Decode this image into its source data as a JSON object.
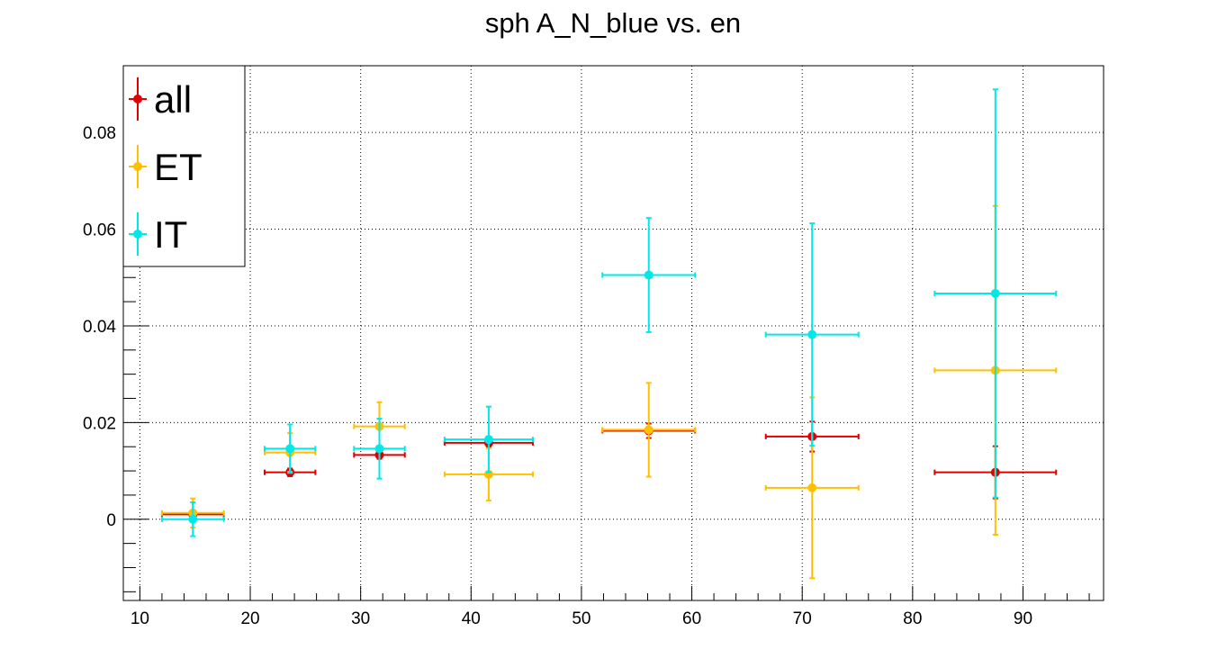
{
  "chart_data": {
    "type": "scatter",
    "title": "sph A_N_blue vs. en",
    "xlabel": "",
    "ylabel": "",
    "xlim": [
      8.5,
      97.3
    ],
    "ylim": [
      -0.0168,
      0.0938
    ],
    "x_ticks": [
      10,
      20,
      30,
      40,
      50,
      60,
      70,
      80,
      90
    ],
    "y_ticks": [
      0,
      0.02,
      0.04,
      0.06,
      0.08
    ],
    "y_tick_labels": [
      "0",
      "0.02",
      "0.04",
      "0.06",
      "0.08"
    ],
    "grid": true,
    "legend_position": "top-left",
    "series": [
      {
        "name": "all",
        "color": "#e00000",
        "points": [
          {
            "x": 14.8,
            "xerr_lo": 2.8,
            "xerr_hi": 2.8,
            "y": 0.001,
            "yerr_lo": 0.0008,
            "yerr_hi": 0.0008
          },
          {
            "x": 23.6,
            "xerr_lo": 2.3,
            "xerr_hi": 2.3,
            "y": 0.0097,
            "yerr_lo": 0.0008,
            "yerr_hi": 0.0008
          },
          {
            "x": 31.7,
            "xerr_lo": 2.3,
            "xerr_hi": 2.3,
            "y": 0.0133,
            "yerr_lo": 0.0008,
            "yerr_hi": 0.0008
          },
          {
            "x": 41.6,
            "xerr_lo": 4.0,
            "xerr_hi": 4.0,
            "y": 0.0158,
            "yerr_lo": 0.0008,
            "yerr_hi": 0.0008
          },
          {
            "x": 56.1,
            "xerr_lo": 4.2,
            "xerr_hi": 4.2,
            "y": 0.0183,
            "yerr_lo": 0.0015,
            "yerr_hi": 0.0015
          },
          {
            "x": 70.9,
            "xerr_lo": 4.2,
            "xerr_hi": 4.2,
            "y": 0.0171,
            "yerr_lo": 0.0031,
            "yerr_hi": 0.0031
          },
          {
            "x": 87.5,
            "xerr_lo": 5.5,
            "xerr_hi": 5.5,
            "y": 0.0097,
            "yerr_lo": 0.0054,
            "yerr_hi": 0.0054
          }
        ]
      },
      {
        "name": "ET",
        "color": "#ffc000",
        "points": [
          {
            "x": 14.8,
            "xerr_lo": 2.8,
            "xerr_hi": 2.8,
            "y": 0.0013,
            "yerr_lo": 0.003,
            "yerr_hi": 0.003
          },
          {
            "x": 23.6,
            "xerr_lo": 2.3,
            "xerr_hi": 2.3,
            "y": 0.0138,
            "yerr_lo": 0.004,
            "yerr_hi": 0.004
          },
          {
            "x": 31.7,
            "xerr_lo": 2.3,
            "xerr_hi": 2.3,
            "y": 0.0192,
            "yerr_lo": 0.005,
            "yerr_hi": 0.005
          },
          {
            "x": 41.6,
            "xerr_lo": 4.0,
            "xerr_hi": 4.0,
            "y": 0.0093,
            "yerr_lo": 0.0054,
            "yerr_hi": 0.0054
          },
          {
            "x": 56.1,
            "xerr_lo": 4.2,
            "xerr_hi": 4.2,
            "y": 0.0185,
            "yerr_lo": 0.0097,
            "yerr_hi": 0.0097
          },
          {
            "x": 70.9,
            "xerr_lo": 4.2,
            "xerr_hi": 4.2,
            "y": 0.0065,
            "yerr_lo": 0.0187,
            "yerr_hi": 0.0187
          },
          {
            "x": 87.5,
            "xerr_lo": 5.5,
            "xerr_hi": 5.5,
            "y": 0.0308,
            "yerr_lo": 0.034,
            "yerr_hi": 0.034
          }
        ]
      },
      {
        "name": "IT",
        "color": "#00e8e8",
        "points": [
          {
            "x": 14.8,
            "xerr_lo": 2.8,
            "xerr_hi": 2.8,
            "y": 0.0,
            "yerr_lo": 0.0035,
            "yerr_hi": 0.0035
          },
          {
            "x": 23.6,
            "xerr_lo": 2.3,
            "xerr_hi": 2.3,
            "y": 0.0146,
            "yerr_lo": 0.005,
            "yerr_hi": 0.005
          },
          {
            "x": 31.7,
            "xerr_lo": 2.3,
            "xerr_hi": 2.3,
            "y": 0.0146,
            "yerr_lo": 0.0062,
            "yerr_hi": 0.0062
          },
          {
            "x": 41.6,
            "xerr_lo": 4.0,
            "xerr_hi": 4.0,
            "y": 0.0165,
            "yerr_lo": 0.0068,
            "yerr_hi": 0.0068
          },
          {
            "x": 56.1,
            "xerr_lo": 4.2,
            "xerr_hi": 4.2,
            "y": 0.0505,
            "yerr_lo": 0.0118,
            "yerr_hi": 0.0118
          },
          {
            "x": 70.9,
            "xerr_lo": 4.2,
            "xerr_hi": 4.2,
            "y": 0.0382,
            "yerr_lo": 0.023,
            "yerr_hi": 0.023
          },
          {
            "x": 87.5,
            "xerr_lo": 5.5,
            "xerr_hi": 5.5,
            "y": 0.0467,
            "yerr_lo": 0.0422,
            "yerr_hi": 0.0422
          }
        ]
      }
    ]
  }
}
